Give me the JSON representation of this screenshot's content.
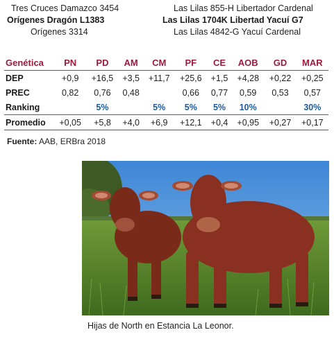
{
  "pedigree": {
    "row1": {
      "left": "Tres Cruces Damazco 3454",
      "right": "Las Lilas 855-H Libertador Cardenal"
    },
    "row2": {
      "left": "Orígenes Dragón L1383",
      "right": "Las Lilas 1704K Libertad Yacuí G7"
    },
    "row3": {
      "left": "Orígenes 3314",
      "right": "Las Lilas 4842-G Yacuí Cardenal"
    }
  },
  "table": {
    "header": [
      "Genética",
      "PN",
      "PD",
      "AM",
      "CM",
      "PF",
      "CE",
      "AOB",
      "GD",
      "MAR"
    ],
    "rows": [
      {
        "label": "DEP",
        "values": [
          "+0,9",
          "+16,5",
          "+3,5",
          "+11,7",
          "+25,6",
          "+1,5",
          "+4,28",
          "+0,22",
          "+0,25"
        ]
      },
      {
        "label": "PREC",
        "values": [
          "0,82",
          "0,76",
          "0,48",
          "",
          "0,66",
          "0,77",
          "0,59",
          "0,53",
          "0,57"
        ]
      },
      {
        "label": "Ranking",
        "values": [
          "",
          "5%",
          "",
          "5%",
          "5%",
          "5%",
          "10%",
          "",
          "30%"
        ]
      },
      {
        "label": "Promedio",
        "values": [
          "+0,05",
          "+5,8",
          "+4,0",
          "+6,9",
          "+12,1",
          "+0,4",
          "+0,95",
          "+0,27",
          "+0,17"
        ]
      }
    ]
  },
  "source": {
    "label": "Fuente:",
    "text": " AAB, ERBra 2018"
  },
  "caption": "Hijas de North en Estancia La Leonor.",
  "colors": {
    "accent": "#9b1c3c",
    "rank": "#1d5a9e"
  }
}
